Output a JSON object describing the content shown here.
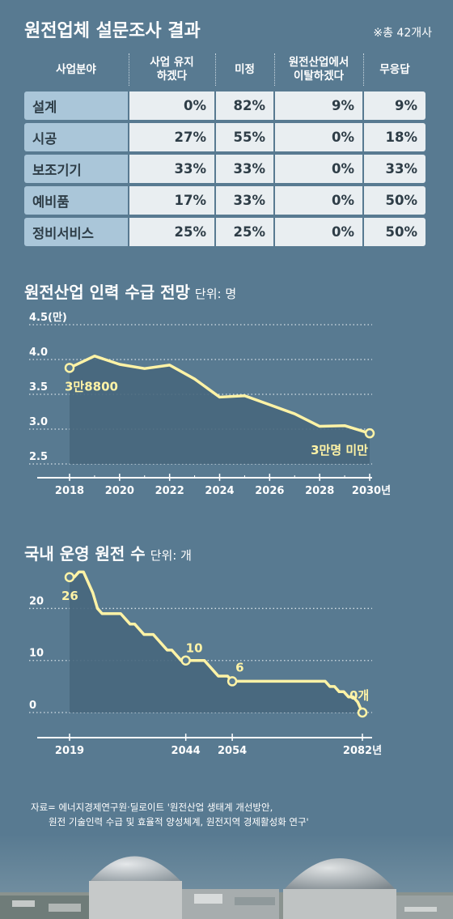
{
  "survey": {
    "title": "원전업체 설문조사 결과",
    "note": "※총 42개사",
    "headers": [
      "사업분야",
      "사업 유지\n하겠다",
      "미정",
      "원전산업에서\n이탈하겠다",
      "무응답"
    ],
    "rows": [
      {
        "label": "설계",
        "values": [
          "0%",
          "82%",
          "9%",
          "9%"
        ]
      },
      {
        "label": "시공",
        "values": [
          "27%",
          "55%",
          "0%",
          "18%"
        ]
      },
      {
        "label": "보조기기",
        "values": [
          "33%",
          "33%",
          "0%",
          "33%"
        ]
      },
      {
        "label": "예비품",
        "values": [
          "17%",
          "33%",
          "0%",
          "50%"
        ]
      },
      {
        "label": "정비서비스",
        "values": [
          "25%",
          "25%",
          "0%",
          "50%"
        ]
      }
    ]
  },
  "workforce": {
    "title": "원전산업 인력 수급 전망",
    "unit": "단위: 명",
    "annotation_start": "3만8800",
    "annotation_end": "3만명 미만"
  },
  "plants": {
    "title": "국내 운영 원전 수",
    "unit": "단위: 개"
  },
  "source": {
    "line1": "자료= 에너지경제연구원·딜로이트 '원전산업 생태계 개선방안,",
    "line2": "원전 기술인력 수급 및 효율적 양성체계, 원전지역 경제활성화 연구'"
  },
  "colors": {
    "background": "#587a91",
    "line": "#fff3a6",
    "area": "#48677d",
    "label_cell": "#aac6d9",
    "value_cell": "#e9eef1"
  },
  "chart_data": [
    {
      "type": "area",
      "title": "원전산업 인력 수급 전망",
      "unit": "단위: 명",
      "y_ticks": [
        "2.5",
        "3.0",
        "3.5",
        "4.0",
        "4.5(만)"
      ],
      "y_tick_values": [
        2.5,
        3.0,
        3.5,
        4.0,
        4.5
      ],
      "x_ticks": [
        "2018",
        "2020",
        "2022",
        "2024",
        "2026",
        "2028",
        "2030년"
      ],
      "x_tick_values": [
        2018,
        2020,
        2022,
        2024,
        2026,
        2028,
        2030
      ],
      "ylim": [
        2.5,
        4.5
      ],
      "xlim": [
        2018,
        2030
      ],
      "grid": true,
      "x": [
        2018,
        2019,
        2020,
        2021,
        2022,
        2023,
        2024,
        2025,
        2026,
        2027,
        2028,
        2029,
        2030
      ],
      "y": [
        3.88,
        4.05,
        3.93,
        3.87,
        3.92,
        3.72,
        3.46,
        3.48,
        3.35,
        3.22,
        3.04,
        3.05,
        2.94
      ],
      "annotations": [
        {
          "text": "3만8800",
          "x": 2018,
          "y": 3.88
        },
        {
          "text": "3만명 미만",
          "x": 2030,
          "y": 2.94
        }
      ]
    },
    {
      "type": "area",
      "title": "국내 운영 원전 수",
      "unit": "단위: 개",
      "y_ticks": [
        "0",
        "10",
        "20"
      ],
      "y_tick_values": [
        0,
        10,
        20
      ],
      "x_ticks": [
        "2019",
        "2044",
        "2054",
        "2082년"
      ],
      "x_tick_values": [
        2019,
        2044,
        2054,
        2082
      ],
      "ylim": [
        0,
        28
      ],
      "xlim": [
        2019,
        2082
      ],
      "grid": true,
      "x": [
        2019,
        2020,
        2021,
        2022,
        2023,
        2024,
        2025,
        2026,
        2027,
        2028,
        2029,
        2030,
        2031,
        2032,
        2033,
        2034,
        2035,
        2036,
        2037,
        2038,
        2039,
        2040,
        2041,
        2042,
        2043,
        2044,
        2045,
        2046,
        2047,
        2048,
        2049,
        2050,
        2051,
        2052,
        2053,
        2054,
        2055,
        2056,
        2057,
        2058,
        2059,
        2060,
        2061,
        2062,
        2063,
        2064,
        2065,
        2066,
        2067,
        2068,
        2069,
        2070,
        2071,
        2072,
        2073,
        2074,
        2075,
        2076,
        2077,
        2078,
        2079,
        2080,
        2081,
        2082
      ],
      "y": [
        26,
        26,
        27,
        27,
        25,
        23,
        20,
        19,
        19,
        19,
        19,
        19,
        18,
        17,
        17,
        16,
        15,
        15,
        15,
        14,
        13,
        12,
        12,
        11,
        10,
        10,
        10,
        10,
        10,
        10,
        9,
        8,
        7,
        7,
        7,
        6,
        6,
        6,
        6,
        6,
        6,
        6,
        6,
        6,
        6,
        6,
        6,
        6,
        6,
        6,
        6,
        6,
        6,
        6,
        6,
        6,
        5,
        5,
        4,
        4,
        3,
        3,
        2,
        0
      ],
      "annotations": [
        {
          "text": "26",
          "x": 2019,
          "y": 26
        },
        {
          "text": "10",
          "x": 2044,
          "y": 10
        },
        {
          "text": "6",
          "x": 2054,
          "y": 6
        },
        {
          "text": "0개",
          "x": 2082,
          "y": 0
        }
      ]
    }
  ]
}
